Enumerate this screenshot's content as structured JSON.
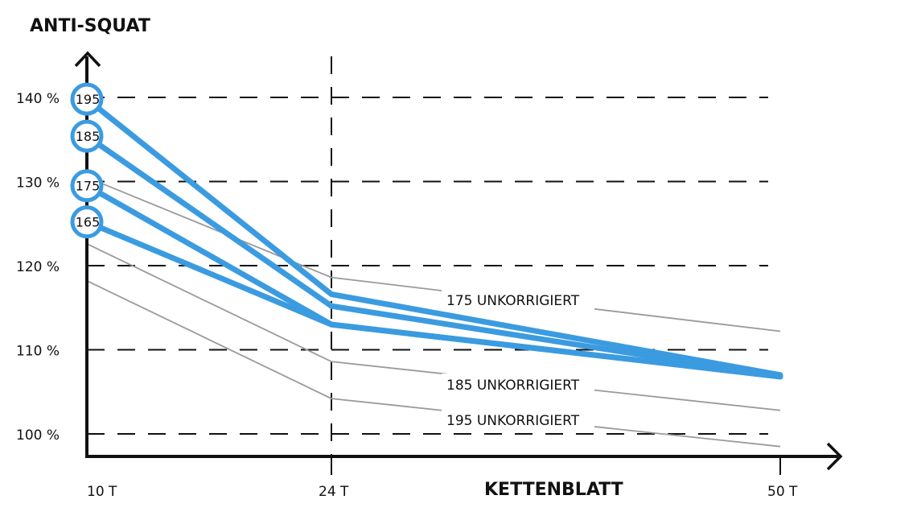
{
  "chart_data": {
    "type": "line",
    "ylabel": "ANTI-SQUAT",
    "xlabel": "KETTENBLATT",
    "x_ticks": [
      "10 T",
      "24 T",
      "50 T"
    ],
    "y_ticks": [
      "100 %",
      "110 %",
      "120 %",
      "130 %",
      "140 %"
    ],
    "x": [
      10,
      24,
      50
    ],
    "ylim": [
      97.5,
      144
    ],
    "grid": "dashed horizontal",
    "series_color": "#3b9be0",
    "reference_color": "#9a9a9a",
    "series": [
      {
        "name": "195",
        "values": [
          139.8,
          116.6,
          107.0
        ]
      },
      {
        "name": "185",
        "values": [
          135.4,
          115.2,
          106.8
        ]
      },
      {
        "name": "175",
        "values": [
          129.5,
          113.0,
          106.8
        ]
      },
      {
        "name": "165",
        "values": [
          125.2,
          113.0,
          106.8
        ]
      }
    ],
    "reference_series": [
      {
        "name": "175 UNKORRIGIERT",
        "values": [
          130.5,
          118.6,
          112.2
        ]
      },
      {
        "name": "185 UNKORRIGIERT",
        "values": [
          122.6,
          108.6,
          102.8
        ]
      },
      {
        "name": "195 UNKORRIGIERT",
        "values": [
          118.2,
          104.2,
          98.5
        ]
      }
    ]
  }
}
